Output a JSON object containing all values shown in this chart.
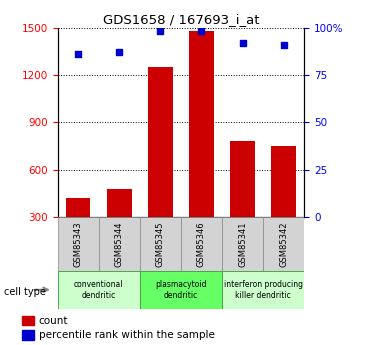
{
  "title": "GDS1658 / 167693_i_at",
  "samples": [
    "GSM85343",
    "GSM85344",
    "GSM85345",
    "GSM85346",
    "GSM85341",
    "GSM85342"
  ],
  "counts": [
    420,
    480,
    1250,
    1480,
    780,
    750
  ],
  "percentiles": [
    86,
    87,
    98,
    98,
    92,
    91
  ],
  "groups": [
    {
      "label": "conventional\ndendritic",
      "start": 0,
      "end": 2,
      "color": "#ccffcc"
    },
    {
      "label": "plasmacytoid\ndendritic",
      "start": 2,
      "end": 4,
      "color": "#66ff66"
    },
    {
      "label": "interferon producing\nkiller dendritic",
      "start": 4,
      "end": 6,
      "color": "#ccffcc"
    }
  ],
  "bar_color": "#cc0000",
  "scatter_color": "#0000cc",
  "ylim_left": [
    300,
    1500
  ],
  "ylim_right": [
    0,
    100
  ],
  "yticks_left": [
    300,
    600,
    900,
    1200,
    1500
  ],
  "ytick_labels_left": [
    "300",
    "600",
    "900",
    "1200",
    "1500"
  ],
  "yticks_right": [
    0,
    25,
    50,
    75,
    100
  ],
  "ytick_labels_right": [
    "0",
    "25",
    "50",
    "75",
    "100%"
  ],
  "sample_bg": "#d3d3d3",
  "legend_count_label": "count",
  "legend_percentile_label": "percentile rank within the sample",
  "cell_type_label": "cell type"
}
